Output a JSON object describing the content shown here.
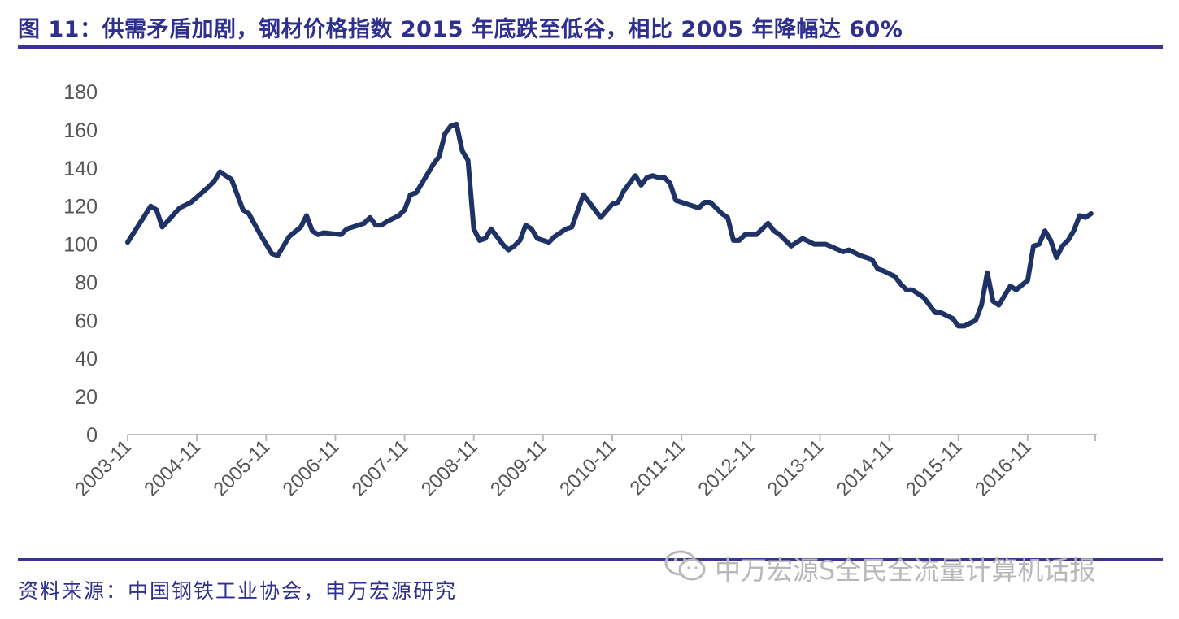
{
  "title": "图 11：供需矛盾加剧，钢材价格指数 2015 年底跌至低谷，相比 2005 年降幅达 60%",
  "source": "资料来源：中国钢铁工业协会，申万宏源研究",
  "watermark": "中万宏源S全民全流量计算机话报",
  "colors": {
    "line": "#1f3266",
    "title": "#2e2f8f",
    "rule": "#3a3592"
  },
  "chart_data": {
    "type": "line",
    "title": "",
    "xlabel": "",
    "ylabel": "",
    "x_start": "2003-11",
    "x_unit": "month index since 2003-11",
    "x_range": [
      0,
      168
    ],
    "ylim": [
      0,
      180
    ],
    "yticks": [
      "0",
      "20",
      "40",
      "60",
      "80",
      "100",
      "120",
      "140",
      "160",
      "180"
    ],
    "xticks": [
      "2003-11",
      "2004-11",
      "2005-11",
      "2006-11",
      "2007-11",
      "2008-11",
      "2009-11",
      "2010-11",
      "2011-11",
      "2012-11",
      "2013-11",
      "2014-11",
      "2015-11",
      "2016-11"
    ],
    "grid": false,
    "legend": "none",
    "series": [
      {
        "name": "钢材价格指数",
        "points": [
          [
            0,
            101
          ],
          [
            4,
            120
          ],
          [
            5,
            118
          ],
          [
            6,
            109
          ],
          [
            9,
            119
          ],
          [
            11,
            122
          ],
          [
            14,
            130
          ],
          [
            15,
            133
          ],
          [
            16,
            138
          ],
          [
            17,
            136
          ],
          [
            18,
            134
          ],
          [
            20,
            118
          ],
          [
            21,
            116
          ],
          [
            23,
            105
          ],
          [
            25,
            95
          ],
          [
            26,
            94
          ],
          [
            28,
            104
          ],
          [
            30,
            109
          ],
          [
            31,
            115
          ],
          [
            32,
            107
          ],
          [
            33,
            105
          ],
          [
            34,
            106
          ],
          [
            37,
            105
          ],
          [
            38,
            108
          ],
          [
            40,
            110
          ],
          [
            41,
            111
          ],
          [
            42,
            114
          ],
          [
            43,
            110
          ],
          [
            44,
            110
          ],
          [
            45,
            112
          ],
          [
            47,
            115
          ],
          [
            48,
            118
          ],
          [
            49,
            126
          ],
          [
            50,
            127
          ],
          [
            52,
            137
          ],
          [
            53,
            142
          ],
          [
            54,
            146
          ],
          [
            55,
            158
          ],
          [
            56,
            162
          ],
          [
            57,
            163
          ],
          [
            58,
            149
          ],
          [
            59,
            144
          ],
          [
            60,
            108
          ],
          [
            61,
            102
          ],
          [
            62,
            103
          ],
          [
            63,
            108
          ],
          [
            65,
            100
          ],
          [
            66,
            97
          ],
          [
            67,
            99
          ],
          [
            68,
            102
          ],
          [
            69,
            110
          ],
          [
            70,
            108
          ],
          [
            71,
            103
          ],
          [
            72,
            102
          ],
          [
            73,
            101
          ],
          [
            74,
            104
          ],
          [
            76,
            108
          ],
          [
            77,
            109
          ],
          [
            79,
            126
          ],
          [
            81,
            118
          ],
          [
            82,
            114
          ],
          [
            84,
            121
          ],
          [
            85,
            122
          ],
          [
            86,
            128
          ],
          [
            87,
            132
          ],
          [
            88,
            136
          ],
          [
            89,
            131
          ],
          [
            90,
            135
          ],
          [
            91,
            136
          ],
          [
            92,
            135
          ],
          [
            93,
            135
          ],
          [
            94,
            132
          ],
          [
            95,
            123
          ],
          [
            97,
            121
          ],
          [
            99,
            119
          ],
          [
            100,
            122
          ],
          [
            101,
            122
          ],
          [
            103,
            116
          ],
          [
            104,
            114
          ],
          [
            105,
            102
          ],
          [
            106,
            102
          ],
          [
            107,
            105
          ],
          [
            109,
            105
          ],
          [
            111,
            111
          ],
          [
            112,
            107
          ],
          [
            113,
            105
          ],
          [
            115,
            99
          ],
          [
            117,
            103
          ],
          [
            119,
            100
          ],
          [
            121,
            100
          ],
          [
            124,
            96
          ],
          [
            125,
            97
          ],
          [
            127,
            94
          ],
          [
            129,
            92
          ],
          [
            130,
            87
          ],
          [
            131,
            86
          ],
          [
            133,
            83
          ],
          [
            134,
            79
          ],
          [
            135,
            76
          ],
          [
            136,
            76
          ],
          [
            138,
            72
          ],
          [
            140,
            64
          ],
          [
            141,
            64
          ],
          [
            143,
            61
          ],
          [
            144,
            57
          ],
          [
            145,
            57
          ],
          [
            147,
            60
          ],
          [
            148,
            68
          ],
          [
            149,
            85
          ],
          [
            150,
            70
          ],
          [
            151,
            68
          ],
          [
            153,
            78
          ],
          [
            154,
            76
          ],
          [
            156,
            81
          ],
          [
            157,
            99
          ],
          [
            158,
            100
          ],
          [
            159,
            107
          ],
          [
            160,
            102
          ],
          [
            161,
            93
          ],
          [
            162,
            99
          ],
          [
            163,
            102
          ],
          [
            164,
            107
          ],
          [
            165,
            115
          ],
          [
            166,
            114
          ],
          [
            167,
            116
          ]
        ]
      }
    ]
  }
}
